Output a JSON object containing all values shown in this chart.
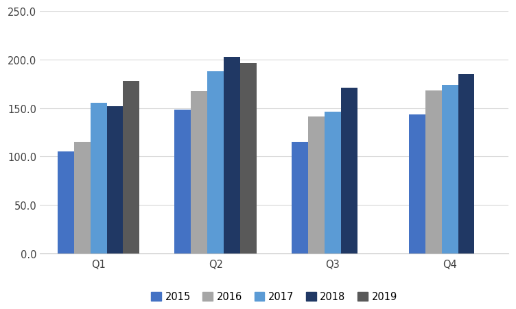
{
  "categories": [
    "Q1",
    "Q2",
    "Q3",
    "Q4"
  ],
  "series": [
    {
      "label": "2015",
      "color": "#4472c4",
      "values": [
        105.0,
        148.0,
        115.0,
        143.0
      ]
    },
    {
      "label": "2016",
      "color": "#a6a6a6",
      "values": [
        115.0,
        167.0,
        141.0,
        168.0
      ]
    },
    {
      "label": "2017",
      "color": "#5b9bd5",
      "values": [
        155.0,
        188.0,
        146.0,
        174.0
      ]
    },
    {
      "label": "2018",
      "color": "#203864",
      "values": [
        152.0,
        203.0,
        171.0,
        185.0
      ]
    },
    {
      "label": "2019",
      "color": "#595959",
      "values": [
        178.0,
        196.0,
        null,
        null
      ]
    }
  ],
  "ylim": [
    0,
    250
  ],
  "yticks": [
    0,
    50,
    100,
    150,
    200,
    250
  ],
  "ytick_labels": [
    "0.0",
    "50.0",
    "100.0",
    "150.0",
    "200.0",
    "250.0"
  ],
  "bar_width": 0.14,
  "background_color": "#ffffff",
  "plot_area_color": "#ffffff",
  "grid_color": "#d9d9d9",
  "legend_ncol": 5,
  "fig_width": 7.52,
  "fig_height": 4.52,
  "dpi": 100
}
